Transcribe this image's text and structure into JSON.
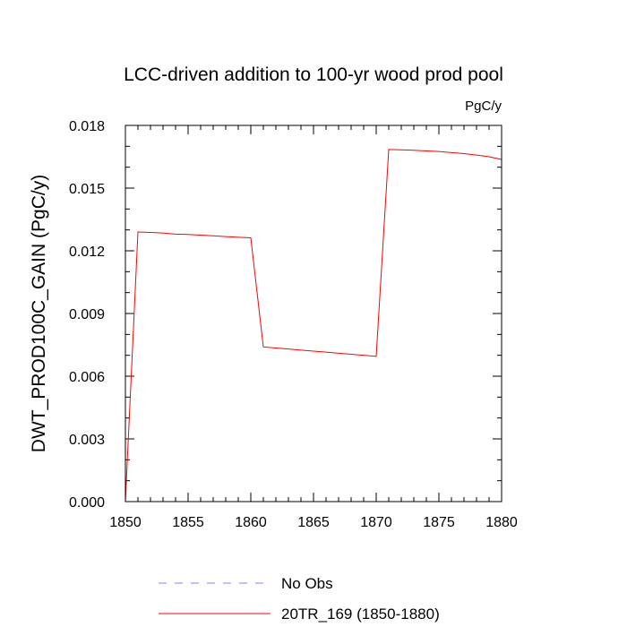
{
  "chart_data": {
    "type": "line",
    "title": "LCC-driven addition to 100-yr wood prod pool",
    "units": "PgC/y",
    "ylabel": "DWT_PROD100C_GAIN  (PgC/y)",
    "xlabel": "",
    "xlim": [
      1850,
      1880
    ],
    "ylim": [
      0.0,
      0.018
    ],
    "xticks": [
      "1850",
      "1855",
      "1860",
      "1865",
      "1870",
      "1875",
      "1880"
    ],
    "yticks": [
      "0.000",
      "0.003",
      "0.006",
      "0.009",
      "0.012",
      "0.015",
      "0.018"
    ],
    "grid": false,
    "legend_position": "bottom",
    "series": [
      {
        "name": "No Obs",
        "color": "#8080ff",
        "dash": "dashed",
        "x": [],
        "y": []
      },
      {
        "name": "20TR_169 (1850-1880)",
        "color": "#ff0000",
        "dash": "solid",
        "x": [
          1850,
          1851,
          1852,
          1853,
          1854,
          1855,
          1856,
          1857,
          1858,
          1859,
          1860,
          1861,
          1862,
          1863,
          1864,
          1865,
          1866,
          1867,
          1868,
          1869,
          1870,
          1871,
          1872,
          1873,
          1874,
          1875,
          1876,
          1877,
          1878,
          1879,
          1880
        ],
        "y": [
          0.0,
          0.0129,
          0.01288,
          0.01285,
          0.0128,
          0.01278,
          0.01275,
          0.01272,
          0.01268,
          0.01265,
          0.01262,
          0.0074,
          0.00735,
          0.0073,
          0.00725,
          0.0072,
          0.00715,
          0.0071,
          0.00705,
          0.007,
          0.00695,
          0.01685,
          0.01683,
          0.01681,
          0.01678,
          0.01675,
          0.0167,
          0.01665,
          0.01658,
          0.0165,
          0.01637
        ]
      }
    ]
  }
}
